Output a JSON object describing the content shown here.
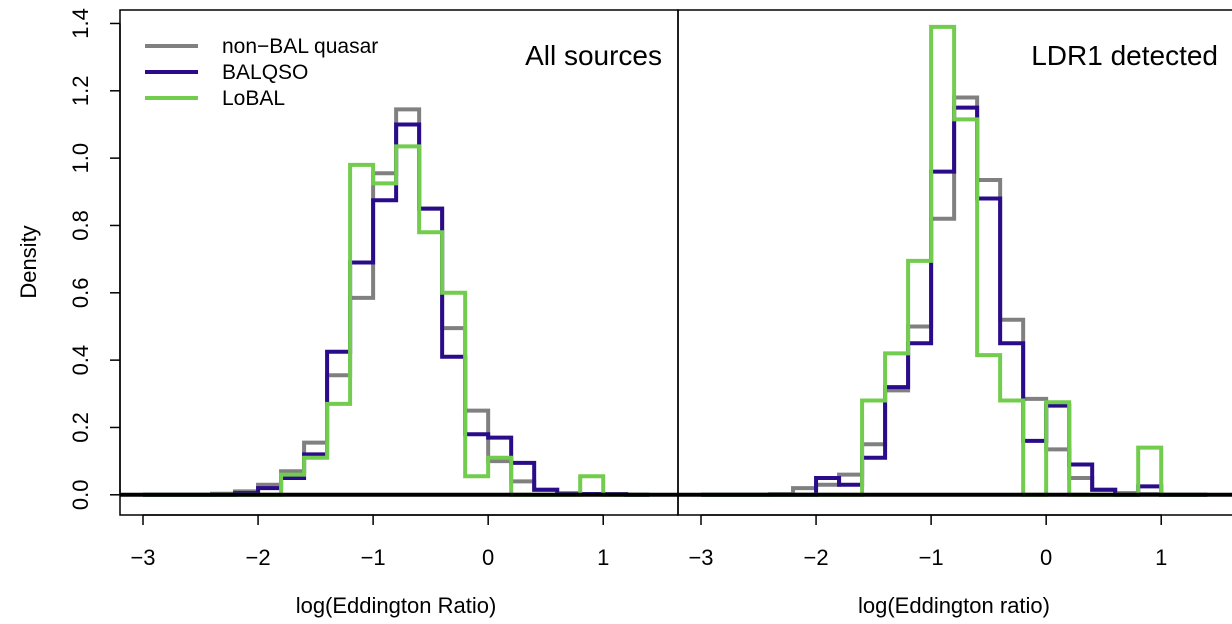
{
  "figure": {
    "ylabel": "Density",
    "y_ticks": [
      0.0,
      0.2,
      0.4,
      0.6,
      0.8,
      1.0,
      1.2,
      1.4
    ],
    "y_tick_labels": [
      "0.0",
      "0.2",
      "0.4",
      "0.6",
      "0.8",
      "1.0",
      "1.2",
      "1.4"
    ],
    "x_ticks": [
      -3,
      -2,
      -1,
      0,
      1
    ],
    "x_tick_labels": [
      "−3",
      "−2",
      "−1",
      "0",
      "1"
    ],
    "colors": {
      "non_bal": "#808080",
      "balqso": "#2a0b8a",
      "lobal": "#72cc4e"
    }
  },
  "legend": {
    "placement": "top-left",
    "items": [
      {
        "label": "non−BAL quasar",
        "color": "#808080"
      },
      {
        "label": "BALQSO",
        "color": "#2a0b8a"
      },
      {
        "label": "LoBAL",
        "color": "#72cc4e"
      }
    ]
  },
  "chart_data": [
    {
      "type": "histogram",
      "title": "All sources",
      "xlabel": "log(Eddington Ratio)",
      "ylabel": "Density",
      "xlim": [
        -3.2,
        1.65
      ],
      "ylim": [
        -0.06,
        1.44
      ],
      "bin_edges": [
        -3.0,
        -2.8,
        -2.6,
        -2.4,
        -2.2,
        -2.0,
        -1.8,
        -1.6,
        -1.4,
        -1.2,
        -1.0,
        -0.8,
        -0.6,
        -0.4,
        -0.2,
        0.0,
        0.2,
        0.4,
        0.6,
        0.8,
        1.0,
        1.2,
        1.4
      ],
      "series": [
        {
          "name": "non−BAL quasar",
          "color": "#808080",
          "values": [
            0.0,
            0.0,
            0.0,
            0.003,
            0.01,
            0.03,
            0.07,
            0.155,
            0.355,
            0.585,
            0.955,
            1.145,
            0.85,
            0.495,
            0.25,
            0.1,
            0.04,
            0.015,
            0.005,
            0.002,
            0.002,
            0.0
          ]
        },
        {
          "name": "BALQSO",
          "color": "#2a0b8a",
          "values": [
            0.0,
            0.0,
            0.0,
            0.0,
            0.005,
            0.02,
            0.05,
            0.12,
            0.425,
            0.69,
            0.875,
            1.1,
            0.85,
            0.41,
            0.18,
            0.17,
            0.095,
            0.015,
            0.002,
            0.002,
            0.002,
            0.0
          ]
        },
        {
          "name": "LoBAL",
          "color": "#72cc4e",
          "values": [
            0.0,
            0.0,
            0.0,
            0.0,
            0.0,
            0.0,
            0.06,
            0.11,
            0.27,
            0.98,
            0.925,
            1.035,
            0.78,
            0.6,
            0.055,
            0.11,
            0.0,
            0.0,
            0.0,
            0.055,
            0.0,
            0.0
          ]
        }
      ]
    },
    {
      "type": "histogram",
      "title": "LDR1 detected",
      "xlabel": "log(Eddington ratio)",
      "ylabel": "Density",
      "xlim": [
        -3.2,
        1.65
      ],
      "ylim": [
        -0.06,
        1.44
      ],
      "bin_edges": [
        -3.0,
        -2.8,
        -2.6,
        -2.4,
        -2.2,
        -2.0,
        -1.8,
        -1.6,
        -1.4,
        -1.2,
        -1.0,
        -0.8,
        -0.6,
        -0.4,
        -0.2,
        0.0,
        0.2,
        0.4,
        0.6,
        0.8,
        1.0,
        1.2,
        1.4
      ],
      "series": [
        {
          "name": "non−BAL quasar",
          "color": "#808080",
          "values": [
            0.0,
            0.0,
            0.0,
            0.002,
            0.02,
            0.03,
            0.06,
            0.15,
            0.31,
            0.5,
            0.82,
            1.18,
            0.935,
            0.52,
            0.285,
            0.135,
            0.05,
            0.015,
            0.005,
            0.002,
            0.0,
            0.0
          ]
        },
        {
          "name": "BALQSO",
          "color": "#2a0b8a",
          "values": [
            0.0,
            0.0,
            0.0,
            0.0,
            0.0,
            0.05,
            0.03,
            0.11,
            0.32,
            0.45,
            0.96,
            1.15,
            0.88,
            0.45,
            0.16,
            0.265,
            0.09,
            0.015,
            0.0,
            0.025,
            0.0,
            0.0
          ]
        },
        {
          "name": "LoBAL",
          "color": "#72cc4e",
          "values": [
            0.0,
            0.0,
            0.0,
            0.0,
            0.0,
            0.0,
            0.0,
            0.28,
            0.42,
            0.695,
            1.39,
            1.115,
            0.415,
            0.28,
            0.0,
            0.275,
            0.0,
            0.0,
            0.0,
            0.14,
            0.0,
            0.0
          ]
        }
      ]
    }
  ]
}
